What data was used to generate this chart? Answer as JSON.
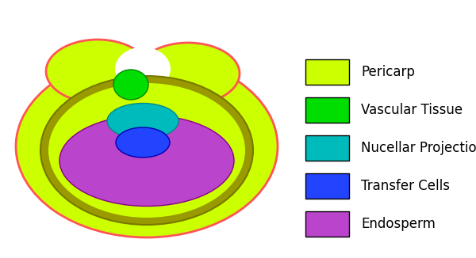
{
  "legend_items": [
    {
      "label": "Pericarp",
      "color": "#ccff00"
    },
    {
      "label": "Vascular Tissue",
      "color": "#00dd00"
    },
    {
      "label": "Nucellar Projection",
      "color": "#00bbbb"
    },
    {
      "label": "Transfer Cells",
      "color": "#2244ff"
    },
    {
      "label": "Endosperm",
      "color": "#bb44cc"
    }
  ],
  "background_color": "#ffffff",
  "pericarp_color": "#ccff00",
  "pericarp_outline": "#ff5555",
  "olive_ring_color": "#999900",
  "olive_ring_edge": "#777700",
  "vascular_color": "#00dd00",
  "vascular_edge": "#008800",
  "nucellar_color": "#00bbbb",
  "nucellar_edge": "#008888",
  "transfer_color": "#2244ff",
  "transfer_edge": "#0000aa",
  "endosperm_color": "#bb44cc",
  "endosperm_edge": "#880088",
  "legend_fontsize": 12,
  "figwidth": 6.0,
  "figheight": 3.26
}
